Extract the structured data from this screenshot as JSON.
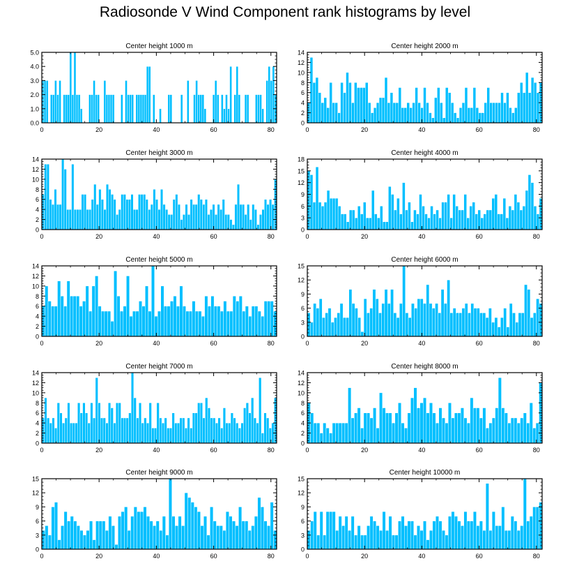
{
  "title": "Radiosonde V Wind Component rank histograms by level",
  "colors": {
    "bar": "#00bfff",
    "bar_stroke": "#ffffff",
    "axis": "#000000"
  },
  "chart_data": [
    {
      "type": "bar",
      "title": "Center height 1000 m",
      "xlabel": "",
      "ylabel": "",
      "xlim": [
        0,
        82
      ],
      "ylim": [
        0,
        5.0
      ],
      "xticks": [
        0,
        20,
        40,
        60,
        80
      ],
      "yticks": [
        0.0,
        1.0,
        2.0,
        3.0,
        4.0,
        5.0
      ],
      "ytick_labels": [
        "0.0",
        "1.0",
        "2.0",
        "3.0",
        "4.0",
        "5.0"
      ],
      "values": [
        3,
        3,
        3,
        0,
        2,
        2,
        3,
        2,
        3,
        0,
        2,
        2,
        2,
        5,
        2,
        5,
        2,
        2,
        1,
        0,
        0,
        0,
        2,
        2,
        3,
        2,
        2,
        0,
        0,
        3,
        2,
        2,
        2,
        2,
        0,
        0,
        0,
        2,
        0,
        3,
        2,
        2,
        2,
        0,
        2,
        2,
        2,
        2,
        2,
        4,
        4,
        0,
        2,
        0,
        0,
        1,
        0,
        0,
        0,
        2,
        2,
        0,
        0,
        0,
        0,
        2,
        0,
        0,
        3,
        0,
        0,
        2,
        3,
        2,
        2,
        2,
        1,
        0,
        0,
        0,
        2,
        3,
        2,
        0,
        2,
        1,
        2,
        1,
        4,
        0,
        2,
        4,
        2,
        0,
        0,
        2,
        2,
        0,
        0,
        0,
        2,
        2,
        2,
        1,
        0,
        3,
        4,
        3,
        4,
        2
      ]
    },
    {
      "type": "bar",
      "title": "Center height 2000 m",
      "xlabel": "",
      "ylabel": "",
      "xlim": [
        0,
        82
      ],
      "ylim": [
        0,
        14
      ],
      "xticks": [
        0,
        20,
        40,
        60,
        80
      ],
      "yticks": [
        0,
        2,
        4,
        6,
        8,
        10,
        12,
        14
      ],
      "ytick_labels": [
        "0",
        "2",
        "4",
        "6",
        "8",
        "10",
        "12",
        "14"
      ],
      "values": [
        4,
        13,
        8,
        9,
        6,
        4,
        5,
        3,
        8,
        4,
        4,
        2,
        8,
        6,
        10,
        8,
        4,
        8,
        7,
        7,
        7,
        8,
        4,
        2,
        3,
        4,
        5,
        5,
        9,
        4,
        6,
        4,
        4,
        7,
        3,
        3,
        4,
        3,
        4,
        7,
        4,
        3,
        7,
        4,
        2,
        1,
        5,
        7,
        4,
        1,
        7,
        6,
        4,
        2,
        1,
        3,
        4,
        7,
        3,
        3,
        7,
        3,
        2,
        2,
        4,
        7,
        4,
        4,
        4,
        4,
        6,
        4,
        6,
        3,
        2,
        3,
        6,
        8,
        6,
        10,
        6,
        9,
        8,
        6,
        8
      ]
    },
    {
      "type": "bar",
      "title": "Center height 3000 m",
      "xlabel": "",
      "ylabel": "",
      "xlim": [
        0,
        82
      ],
      "ylim": [
        0,
        14
      ],
      "xticks": [
        0,
        20,
        40,
        60,
        80
      ],
      "yticks": [
        0,
        2,
        4,
        6,
        8,
        10,
        12,
        14
      ],
      "ytick_labels": [
        "0",
        "2",
        "4",
        "6",
        "8",
        "10",
        "12",
        "14"
      ],
      "values": [
        7,
        13,
        13,
        6,
        5,
        8,
        5,
        5,
        14,
        12,
        4,
        4,
        13,
        4,
        4,
        4,
        7,
        7,
        4,
        4,
        6,
        9,
        5,
        8,
        6,
        4,
        9,
        8,
        7,
        6,
        3,
        4,
        7,
        7,
        6,
        6,
        7,
        4,
        4,
        7,
        7,
        7,
        6,
        4,
        5,
        8,
        6,
        4,
        8,
        5,
        4,
        3,
        3,
        6,
        7,
        5,
        2,
        3,
        5,
        3,
        6,
        5,
        5,
        7,
        6,
        5,
        6,
        3,
        4,
        5,
        3,
        5,
        4,
        6,
        3,
        3,
        2,
        1,
        5,
        9,
        5,
        5,
        3,
        5,
        2,
        5,
        4,
        1,
        3,
        4,
        6,
        5,
        6,
        5,
        10
      ]
    },
    {
      "type": "bar",
      "title": "Center height 4000 m",
      "xlabel": "",
      "ylabel": "",
      "xlim": [
        0,
        82
      ],
      "ylim": [
        0,
        18
      ],
      "xticks": [
        0,
        20,
        40,
        60,
        80
      ],
      "yticks": [
        0,
        3,
        6,
        9,
        12,
        15,
        18
      ],
      "ytick_labels": [
        "0",
        "3",
        "6",
        "9",
        "12",
        "15",
        "18"
      ],
      "values": [
        15,
        14,
        7,
        16,
        7,
        6,
        7,
        10,
        8,
        8,
        8,
        6,
        4,
        4,
        2,
        5,
        5,
        3,
        6,
        4,
        7,
        3,
        3,
        10,
        4,
        3,
        6,
        2,
        2,
        11,
        9,
        5,
        8,
        4,
        12,
        5,
        7,
        2,
        5,
        4,
        9,
        6,
        4,
        3,
        6,
        4,
        5,
        3,
        7,
        7,
        9,
        3,
        9,
        6,
        5,
        5,
        9,
        3,
        6,
        7,
        4,
        5,
        3,
        4,
        5,
        5,
        8,
        9,
        4,
        4,
        8,
        3,
        6,
        5,
        9,
        7,
        5,
        6,
        10,
        14,
        12,
        6,
        4,
        8
      ]
    },
    {
      "type": "bar",
      "title": "Center height 5000 m",
      "xlabel": "",
      "ylabel": "",
      "xlim": [
        0,
        82
      ],
      "ylim": [
        0,
        14
      ],
      "xticks": [
        0,
        20,
        40,
        60,
        80
      ],
      "yticks": [
        0,
        2,
        4,
        6,
        8,
        10,
        12,
        14
      ],
      "ytick_labels": [
        "0",
        "2",
        "4",
        "6",
        "8",
        "10",
        "12",
        "14"
      ],
      "values": [
        6,
        10,
        7,
        6,
        6,
        11,
        8,
        6,
        11,
        8,
        8,
        8,
        6,
        7,
        10,
        5,
        10,
        12,
        6,
        5,
        5,
        5,
        3,
        13,
        8,
        5,
        6,
        12,
        4,
        5,
        5,
        7,
        6,
        10,
        5,
        14,
        4,
        5,
        10,
        6,
        6,
        7,
        8,
        6,
        10,
        6,
        5,
        5,
        7,
        5,
        5,
        4,
        8,
        6,
        8,
        6,
        6,
        5,
        7,
        5,
        5,
        8,
        7,
        8,
        5,
        6,
        4,
        6,
        6,
        5,
        4,
        7,
        7,
        7,
        5
      ]
    },
    {
      "type": "bar",
      "title": "Center height 6000 m",
      "xlabel": "",
      "ylabel": "",
      "xlim": [
        0,
        82
      ],
      "ylim": [
        0,
        15
      ],
      "xticks": [
        0,
        20,
        40,
        60,
        80
      ],
      "yticks": [
        0,
        3,
        6,
        9,
        12,
        15
      ],
      "ytick_labels": [
        "0",
        "3",
        "6",
        "9",
        "12",
        "15"
      ],
      "values": [
        5,
        3,
        7,
        6,
        8,
        4,
        5,
        6,
        3,
        4,
        5,
        7,
        4,
        4,
        10,
        7,
        6,
        4,
        1,
        8,
        5,
        6,
        10,
        8,
        5,
        7,
        10,
        7,
        10,
        5,
        4,
        7,
        15,
        5,
        4,
        7,
        6,
        8,
        8,
        7,
        11,
        7,
        6,
        7,
        5,
        10,
        7,
        12,
        5,
        6,
        5,
        5,
        6,
        7,
        5,
        7,
        6,
        6,
        5,
        5,
        4,
        6,
        3,
        4,
        2,
        4,
        6,
        2,
        7,
        5,
        3,
        5,
        5,
        11,
        10,
        4,
        5,
        8,
        7
      ]
    },
    {
      "type": "bar",
      "title": "Center height 7000 m",
      "xlabel": "",
      "ylabel": "",
      "xlim": [
        0,
        82
      ],
      "ylim": [
        0,
        14
      ],
      "xticks": [
        0,
        20,
        40,
        60,
        80
      ],
      "yticks": [
        0,
        2,
        4,
        6,
        8,
        10,
        12,
        14
      ],
      "ytick_labels": [
        "0",
        "2",
        "4",
        "6",
        "8",
        "10",
        "12",
        "14"
      ],
      "values": [
        5,
        9,
        5,
        4,
        5,
        3,
        8,
        6,
        4,
        5,
        8,
        4,
        4,
        4,
        8,
        6,
        8,
        6,
        4,
        8,
        5,
        13,
        8,
        5,
        5,
        4,
        8,
        7,
        4,
        8,
        8,
        5,
        5,
        5,
        6,
        14,
        9,
        5,
        8,
        4,
        5,
        4,
        8,
        3,
        3,
        8,
        5,
        4,
        5,
        3,
        3,
        6,
        4,
        4,
        5,
        5,
        3,
        5,
        3,
        6,
        6,
        8,
        8,
        5,
        9,
        7,
        5,
        5,
        4,
        5,
        3,
        7,
        4,
        4,
        6,
        5,
        4,
        3,
        4,
        7,
        8,
        6,
        9,
        5,
        4,
        13,
        2,
        6,
        5,
        3,
        4,
        9
      ]
    },
    {
      "type": "bar",
      "title": "Center height 8000 m",
      "xlabel": "",
      "ylabel": "",
      "xlim": [
        0,
        82
      ],
      "ylim": [
        0,
        14
      ],
      "xticks": [
        0,
        20,
        40,
        60,
        80
      ],
      "yticks": [
        0,
        2,
        4,
        6,
        8,
        10,
        12,
        14
      ],
      "ytick_labels": [
        "0",
        "2",
        "4",
        "6",
        "8",
        "10",
        "12",
        "14"
      ],
      "values": [
        8,
        6,
        4,
        4,
        2,
        4,
        3,
        2,
        4,
        4,
        4,
        4,
        4,
        11,
        5,
        6,
        7,
        3,
        6,
        6,
        5,
        7,
        3,
        10,
        7,
        6,
        6,
        4,
        6,
        8,
        4,
        3,
        6,
        9,
        11,
        7,
        8,
        9,
        6,
        8,
        6,
        4,
        7,
        5,
        4,
        8,
        5,
        6,
        6,
        7,
        5,
        4,
        9,
        7,
        7,
        5,
        7,
        3,
        4,
        5,
        7,
        13,
        7,
        6,
        4,
        5,
        5,
        4,
        5,
        6,
        4,
        8,
        3,
        4,
        12
      ]
    },
    {
      "type": "bar",
      "title": "Center height 9000 m",
      "xlabel": "",
      "ylabel": "",
      "xlim": [
        0,
        82
      ],
      "ylim": [
        0,
        15
      ],
      "xticks": [
        0,
        20,
        40,
        60,
        80
      ],
      "yticks": [
        0,
        3,
        6,
        9,
        12,
        15
      ],
      "ytick_labels": [
        "0",
        "3",
        "6",
        "9",
        "12",
        "15"
      ],
      "values": [
        4,
        5,
        3,
        9,
        10,
        2,
        5,
        8,
        6,
        7,
        6,
        5,
        4,
        3,
        4,
        6,
        2,
        6,
        6,
        6,
        4,
        7,
        5,
        1,
        7,
        8,
        9,
        4,
        7,
        9,
        8,
        8,
        9,
        7,
        6,
        5,
        6,
        4,
        7,
        3,
        15,
        7,
        5,
        7,
        5,
        12,
        11,
        10,
        9,
        8,
        5,
        7,
        3,
        9,
        6,
        5,
        5,
        4,
        8,
        7,
        6,
        5,
        9,
        6,
        6,
        4,
        5,
        7,
        11,
        9,
        6,
        5,
        10,
        4
      ]
    },
    {
      "type": "bar",
      "title": "Center height 10000 m",
      "xlabel": "",
      "ylabel": "",
      "xlim": [
        0,
        82
      ],
      "ylim": [
        0,
        15
      ],
      "xticks": [
        0,
        20,
        40,
        60,
        80
      ],
      "yticks": [
        0,
        3,
        6,
        9,
        12,
        15
      ],
      "ytick_labels": [
        "0",
        "3",
        "6",
        "9",
        "12",
        "15"
      ],
      "values": [
        4,
        6,
        8,
        3,
        8,
        3,
        8,
        8,
        8,
        4,
        7,
        5,
        7,
        4,
        7,
        3,
        5,
        3,
        3,
        5,
        7,
        6,
        5,
        4,
        8,
        4,
        7,
        3,
        3,
        6,
        7,
        5,
        6,
        6,
        3,
        5,
        4,
        6,
        2,
        4,
        6,
        7,
        6,
        4,
        3,
        7,
        8,
        7,
        6,
        5,
        8,
        6,
        6,
        8,
        5,
        6,
        4,
        14,
        4,
        8,
        5,
        5,
        9,
        4,
        4,
        7,
        6,
        4,
        5,
        15,
        6,
        7,
        9,
        9,
        10
      ]
    }
  ]
}
